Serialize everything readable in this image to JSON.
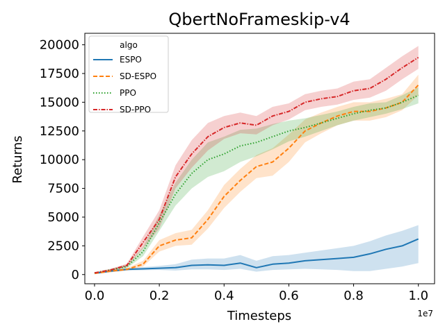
{
  "chart_data": {
    "type": "line",
    "title": "QbertNoFrameskip-v4",
    "xlabel": "Timesteps",
    "ylabel": "Returns",
    "x_offset_label": "1e7",
    "xlim": [
      -0.03,
      1.05
    ],
    "ylim": [
      -800,
      21000
    ],
    "x_ticks": [
      0.0,
      0.2,
      0.4,
      0.6,
      0.8,
      1.0
    ],
    "x_tick_labels": [
      "0.0",
      "0.2",
      "0.4",
      "0.6",
      "0.8",
      "1.0"
    ],
    "y_ticks": [
      0,
      2500,
      5000,
      7500,
      10000,
      12500,
      15000,
      17500,
      20000
    ],
    "y_tick_labels": [
      "0",
      "2500",
      "5000",
      "7500",
      "10000",
      "12500",
      "15000",
      "17500",
      "20000"
    ],
    "grid": false,
    "legend": {
      "title": "algo",
      "placement": "top-left"
    },
    "x": [
      0.0,
      0.05,
      0.1,
      0.15,
      0.2,
      0.25,
      0.3,
      0.35,
      0.4,
      0.45,
      0.5,
      0.55,
      0.6,
      0.65,
      0.7,
      0.75,
      0.8,
      0.85,
      0.9,
      0.95,
      1.0
    ],
    "series": [
      {
        "name": "ESPO",
        "color": "#1f77b4",
        "dash": "solid",
        "values": [
          100,
          300,
          450,
          500,
          550,
          600,
          800,
          850,
          800,
          1000,
          600,
          900,
          1000,
          1200,
          1300,
          1400,
          1500,
          1800,
          2200,
          2500,
          3100
        ],
        "lower": [
          50,
          200,
          350,
          380,
          400,
          350,
          450,
          450,
          400,
          500,
          250,
          400,
          450,
          500,
          450,
          400,
          300,
          300,
          500,
          700,
          1000
        ],
        "upper": [
          150,
          400,
          550,
          650,
          750,
          900,
          1300,
          1400,
          1400,
          1700,
          1200,
          1600,
          1700,
          1900,
          2100,
          2300,
          2500,
          2900,
          3400,
          3800,
          4300
        ]
      },
      {
        "name": "SD-ESPO",
        "color": "#ff7f0e",
        "dash": "dashed",
        "values": [
          100,
          300,
          450,
          900,
          2500,
          3000,
          3200,
          4800,
          6800,
          8200,
          9400,
          9800,
          11000,
          12500,
          13200,
          13800,
          14200,
          14200,
          14500,
          15000,
          16500
        ],
        "lower": [
          50,
          200,
          350,
          700,
          2000,
          2500,
          2600,
          4000,
          5800,
          7200,
          8400,
          8600,
          9800,
          11500,
          12300,
          13000,
          13400,
          13400,
          13700,
          14300,
          15600
        ],
        "upper": [
          150,
          400,
          550,
          1200,
          3000,
          3600,
          3900,
          5600,
          7800,
          9200,
          10400,
          11000,
          12200,
          13500,
          14100,
          14600,
          15000,
          15000,
          15300,
          15700,
          17400
        ]
      },
      {
        "name": "PPO",
        "color": "#2ca02c",
        "dash": "dotted",
        "values": [
          150,
          400,
          700,
          2000,
          4500,
          7000,
          8800,
          10000,
          10500,
          11200,
          11500,
          12000,
          12500,
          12800,
          13200,
          13600,
          14000,
          14300,
          14500,
          15000,
          15600
        ],
        "lower": [
          100,
          300,
          550,
          1600,
          3800,
          6000,
          7500,
          8500,
          9000,
          9800,
          10300,
          10900,
          11600,
          12000,
          12500,
          13000,
          13400,
          13700,
          14000,
          14400,
          14900
        ],
        "upper": [
          200,
          500,
          850,
          2400,
          5200,
          8000,
          10000,
          11500,
          12000,
          12600,
          12700,
          13100,
          13400,
          13600,
          13900,
          14200,
          14600,
          14900,
          15000,
          15600,
          16300
        ]
      },
      {
        "name": "SD-PPO",
        "color": "#d62728",
        "dash": "dashdot",
        "values": [
          150,
          400,
          800,
          2800,
          4800,
          8500,
          10500,
          12000,
          12800,
          13200,
          13000,
          13800,
          14200,
          15000,
          15300,
          15500,
          16000,
          16200,
          17000,
          18000,
          18900
        ],
        "lower": [
          100,
          300,
          650,
          2300,
          4000,
          7500,
          9300,
          10800,
          11800,
          12300,
          12200,
          13000,
          13500,
          14300,
          14600,
          14800,
          15200,
          15400,
          16000,
          17000,
          17900
        ],
        "upper": [
          200,
          500,
          950,
          3300,
          5600,
          9500,
          11700,
          13200,
          13800,
          14100,
          13800,
          14600,
          14900,
          15700,
          16000,
          16200,
          16800,
          17000,
          18000,
          19000,
          19900
        ]
      }
    ]
  }
}
